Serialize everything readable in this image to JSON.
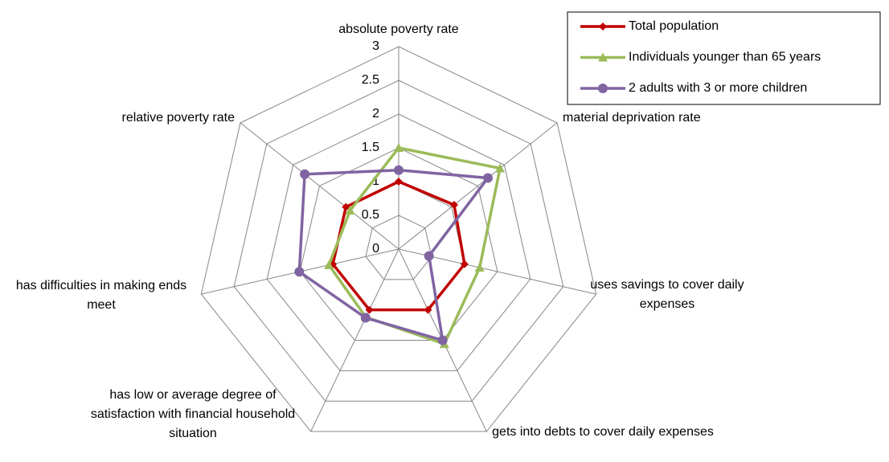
{
  "chart_data": {
    "type": "radar",
    "categories": [
      "absolute poverty rate",
      "material deprivation rate",
      "uses savings to cover daily expenses",
      "gets into debts to cover daily expenses",
      "has low or average degree of satisfaction with financial household situation",
      "has difficulties in making ends meet",
      "relative poverty rate"
    ],
    "series": [
      {
        "name": "Total population",
        "color": "#c00000",
        "marker": "diamond",
        "values": [
          1.0,
          1.05,
          1.0,
          1.0,
          1.0,
          1.0,
          1.0
        ]
      },
      {
        "name": "Individuals younger than 65 years",
        "color": "#9bbb59",
        "marker": "triangle",
        "values": [
          1.5,
          1.92,
          1.23,
          1.56,
          1.12,
          1.06,
          0.92
        ]
      },
      {
        "name": "2 adults with 3 or more children",
        "color": "#8064a2",
        "marker": "circle",
        "values": [
          1.17,
          1.69,
          0.46,
          1.5,
          1.13,
          1.51,
          1.78
        ]
      }
    ],
    "ylim": [
      0,
      3
    ],
    "yticks": [
      0,
      0.5,
      1,
      1.5,
      2,
      2.5,
      3
    ],
    "grid": true
  }
}
